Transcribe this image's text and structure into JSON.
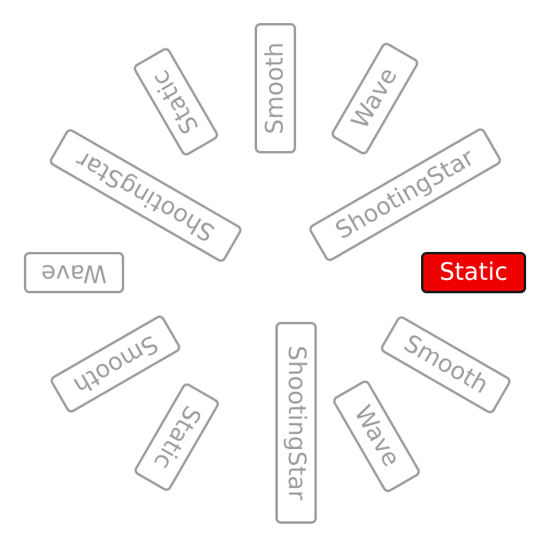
{
  "wheel": {
    "selected": "Static",
    "options": [
      {
        "label": "Static",
        "state": "selected"
      },
      {
        "label": "Smooth",
        "state": "unselected"
      },
      {
        "label": "Wave",
        "state": "unselected"
      },
      {
        "label": "ShootingStar",
        "state": "unselected"
      },
      {
        "label": "Static",
        "state": "unselected"
      },
      {
        "label": "Smooth",
        "state": "unselected"
      },
      {
        "label": "Wave",
        "state": "unselected"
      },
      {
        "label": "ShootingStar",
        "state": "unselected"
      },
      {
        "label": "Static",
        "state": "unselected"
      },
      {
        "label": "Smooth",
        "state": "unselected"
      },
      {
        "label": "Wave",
        "state": "unselected"
      },
      {
        "label": "ShootingStar",
        "state": "unselected"
      }
    ]
  },
  "colors": {
    "selected_fill": "#ee0000",
    "selected_border": "#1a1a1a",
    "selected_text": "#ffffff",
    "unselected_border": "#9e9e9e",
    "unselected_text": "#9e9e9e"
  }
}
